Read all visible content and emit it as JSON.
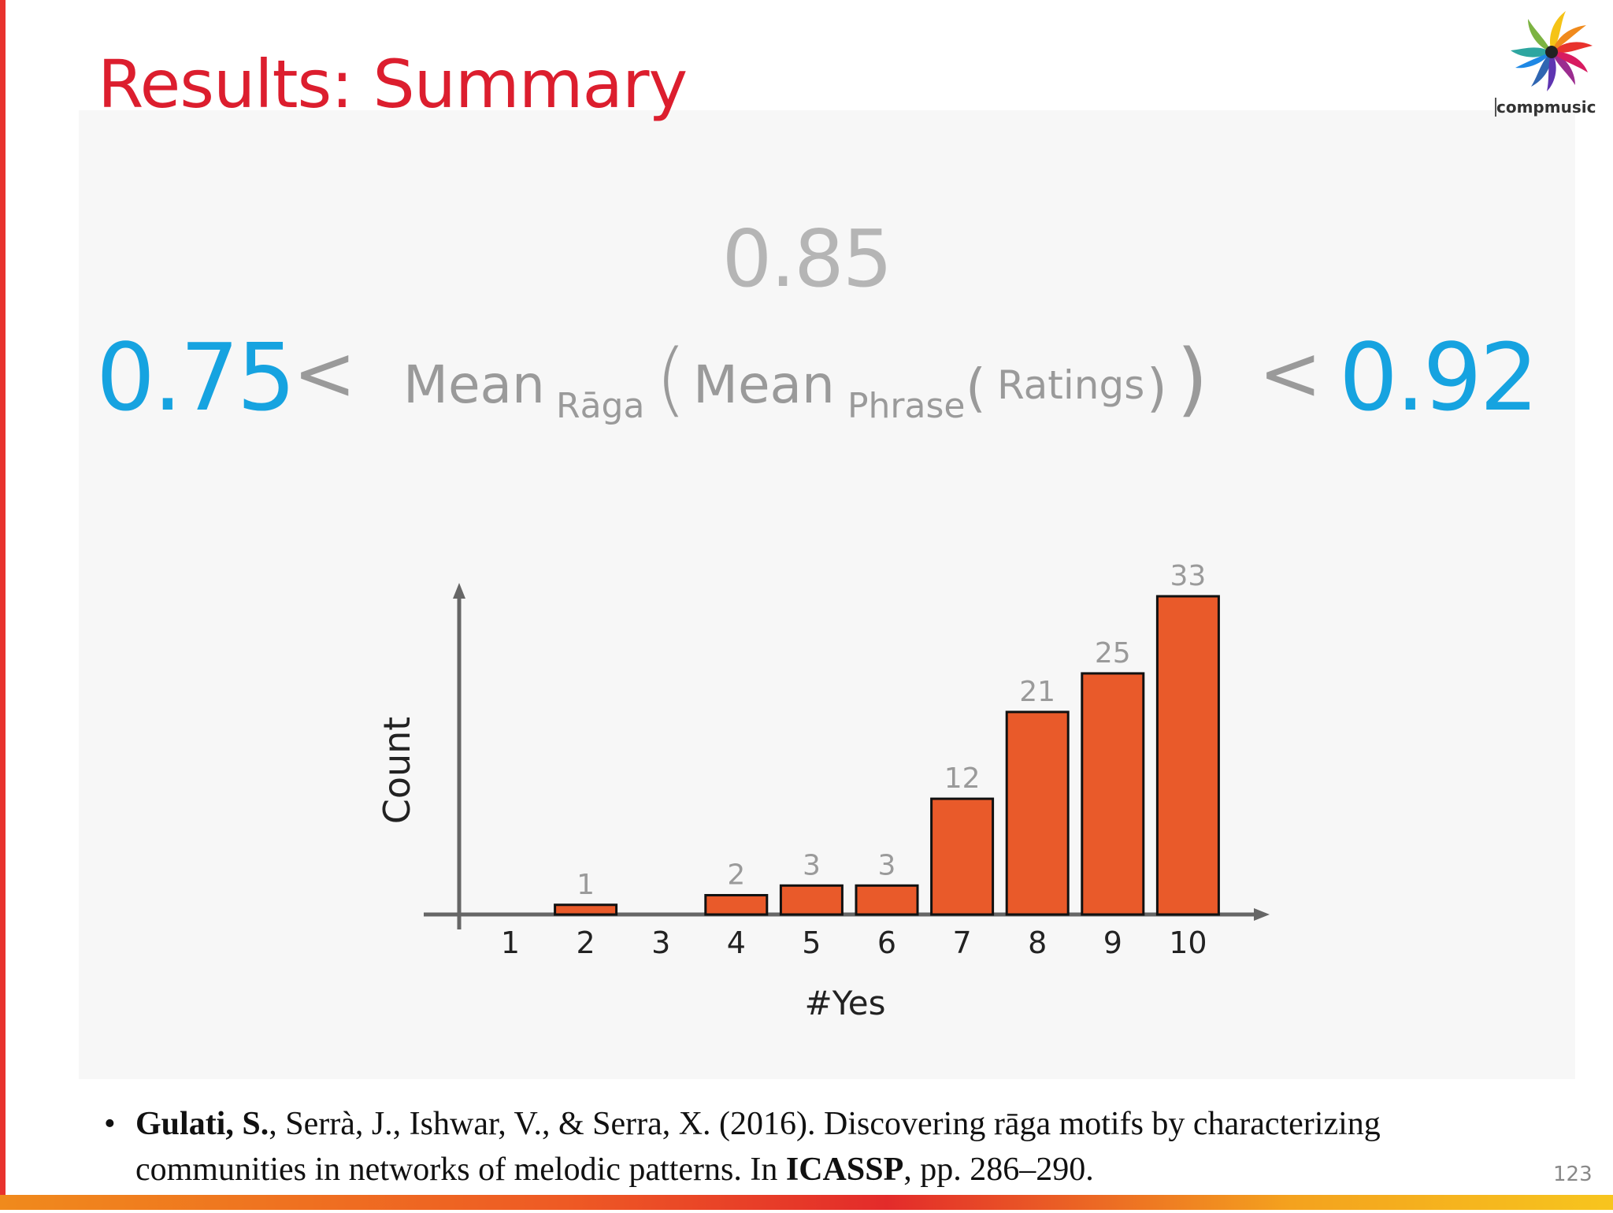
{
  "slide": {
    "title": "Results: Summary",
    "logo_text": "compmusic",
    "page_number": "123"
  },
  "summary": {
    "mean_value": "0.85",
    "lower_bound": "0.75",
    "upper_bound": "0.92",
    "less_than": "<",
    "mean_word": "Mean",
    "raga_sub": "Rāga",
    "phrase_sub": "Phrase",
    "ratings": "Ratings",
    "paren_open": "(",
    "paren_close": ")"
  },
  "chart_data": {
    "type": "bar",
    "categories": [
      "1",
      "2",
      "3",
      "4",
      "5",
      "6",
      "7",
      "8",
      "9",
      "10"
    ],
    "values": [
      0,
      1,
      0,
      2,
      3,
      3,
      12,
      21,
      25,
      33
    ],
    "data_labels": [
      "",
      "1",
      "",
      "2",
      "3",
      "3",
      "12",
      "21",
      "25",
      "33"
    ],
    "xlabel": "#Yes",
    "ylabel": "Count",
    "ylim": [
      0,
      33
    ],
    "grid": false,
    "bar_color": "#e95a2a",
    "axis_color": "#666666",
    "label_color": "#9a9a9a"
  },
  "citation": {
    "bullet": "•",
    "author_bold": "Gulati, S.",
    "rest_1": ", Serrà, J., Ishwar, V., & Serra, X. (2016). Discovering rāga motifs by characterizing communities in networks of melodic patterns. In ",
    "venue_bold": "ICASSP",
    "rest_2": ", pp. 286–290."
  },
  "colors": {
    "title": "#dc1e2e",
    "bounds": "#16a3e0",
    "formula": "#9a9a9a"
  }
}
